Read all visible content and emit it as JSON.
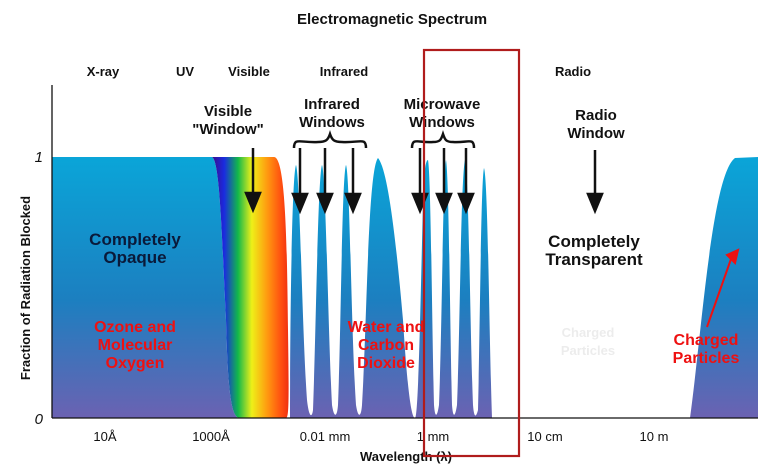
{
  "title": "Electromagnetic Spectrum",
  "bands": [
    "X-ray",
    "UV",
    "Visible",
    "Infrared",
    "Radio"
  ],
  "y_axis": {
    "label": "Fraction of Radiation Blocked",
    "ticks": [
      "1",
      "0"
    ]
  },
  "x_axis": {
    "label": "Wavelength (λ)",
    "ticks": [
      "10Å",
      "1000Å",
      "0.01 mm",
      "1 mm",
      "10 cm",
      "10 m"
    ]
  },
  "window_labels": {
    "visible": [
      "Visible",
      "\"Window\""
    ],
    "infrared": [
      "Infrared",
      "Windows"
    ],
    "microwave": [
      "Microwave",
      "Windows"
    ],
    "radio": [
      "Radio",
      "Window"
    ]
  },
  "region_labels": {
    "opaque": [
      "Completely",
      "Opaque"
    ],
    "transparent": [
      "Completely",
      "Transparent"
    ]
  },
  "absorbers": {
    "ozone": [
      "Ozone and",
      "Molecular",
      "Oxygen"
    ],
    "water": [
      "Water and",
      "Carbon",
      "Dioxide"
    ],
    "faded": [
      "Charged",
      "Particles"
    ],
    "charged": [
      "Charged",
      "Particles"
    ]
  },
  "colors": {
    "absorption_top": "#0aa5d8",
    "absorption_mid": "#1c7fc0",
    "absorption_bottom": "#6b62b2",
    "absorber_text": "#ee1111",
    "highlight_box": "#b01c1c"
  }
}
